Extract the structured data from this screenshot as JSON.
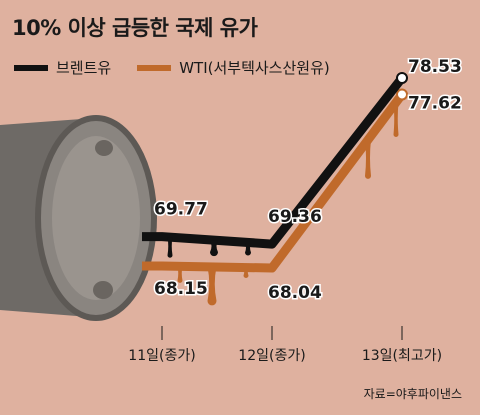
{
  "title": "10% 이상 급등한 국제 유가",
  "source": "자료=야후파이낸스",
  "colors": {
    "background": "#dfb19f",
    "brent": "#111111",
    "wti": "#c06a2b",
    "barrel": "#7a7570"
  },
  "chart_data": {
    "type": "line",
    "title": "10% 이상 급등한 국제 유가",
    "categories": [
      "11일(종가)",
      "12일(종가)",
      "13일(최고가)"
    ],
    "series": [
      {
        "name": "브렌트유",
        "values": [
          69.77,
          69.36,
          78.53
        ],
        "labels": [
          "69.77",
          "69.36",
          "78.53"
        ],
        "color": "#111111"
      },
      {
        "name": "WTI(서부텍사스산원유)",
        "values": [
          68.15,
          68.04,
          77.62
        ],
        "labels": [
          "68.15",
          "68.04",
          "77.62"
        ],
        "color": "#c06a2b"
      }
    ],
    "legend": "top-left",
    "grid": false
  }
}
